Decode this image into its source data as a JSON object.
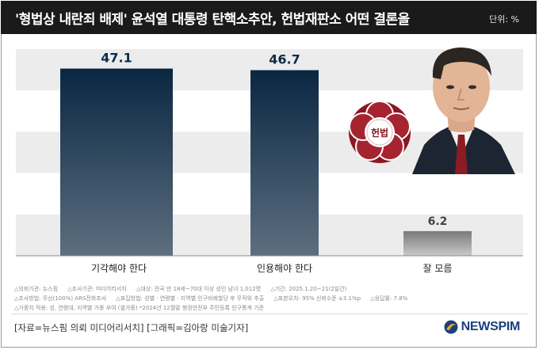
{
  "header": {
    "title": "'형법상 내란죄 배제' 윤석열 대통령 탄핵소추안, 헌법재판소 어떤 결론을",
    "unit": "단위: %"
  },
  "chart_data": {
    "type": "bar",
    "categories": [
      "기각해야 한다",
      "인용해야 한다",
      "잘 모름"
    ],
    "values": [
      47.1,
      46.7,
      6.2
    ],
    "value_labels": [
      "47.1",
      "46.7",
      "6.2"
    ],
    "title": "'형법상 내란죄 배제' 윤석열 대통령 탄핵소추안, 헌법재판소 어떤 결론을",
    "unit": "단위: %",
    "ylim": [
      0,
      52
    ],
    "grid": true,
    "colors": [
      "#0d2c4a",
      "#0d2c4a",
      "#8e8e8e"
    ]
  },
  "emblem": {
    "text": "헌법"
  },
  "notes": [
    [
      "△의뢰기관: 뉴스핌",
      "△조사기관: 미디어리서치",
      "△대상: 전국 만 18세~70대 이상 성인 남녀 1,012명",
      "△기간: 2025.1.20~21(2일간)"
    ],
    [
      "△조사방법: 무선(100%) ARS전화조사",
      "△표집방법: 성별 · 연령별 · 지역별 인구비례할당 후 무작위 추출",
      "△표본오차: 95% 신뢰수준 ±3.1%p",
      "△응답률: 7.8%"
    ],
    [
      "△가중치 적용: 성, 연령대, 지역별 가중 부여 (셀가중) *2024년 12월말 행정안전부 주민등록 인구통계 기준"
    ]
  ],
  "source": "[자료=뉴스핌 의뢰 미디어리서치] [그래픽=김아랑 미술기자]",
  "logo": {
    "text": "NEWSPIM"
  }
}
